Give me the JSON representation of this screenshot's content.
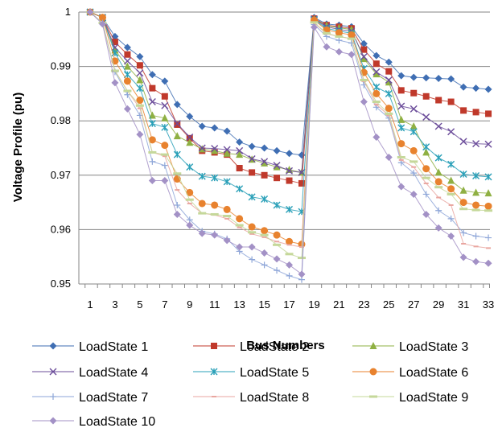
{
  "chart_data": {
    "type": "line",
    "xlabel": "Bus Numbers",
    "ylabel": "Voltage Profile (pu)",
    "ylim": [
      0.95,
      1.0
    ],
    "yticks": [
      "0.95",
      "0.96",
      "0.97",
      "0.98",
      "0.99",
      "1"
    ],
    "xticks": [
      "1",
      "3",
      "5",
      "7",
      "9",
      "11",
      "13",
      "15",
      "17",
      "19",
      "21",
      "23",
      "25",
      "27",
      "29",
      "31",
      "33"
    ],
    "x": [
      1,
      2,
      3,
      4,
      5,
      6,
      7,
      8,
      9,
      10,
      11,
      12,
      13,
      14,
      15,
      16,
      17,
      18,
      19,
      20,
      21,
      22,
      23,
      24,
      25,
      26,
      27,
      28,
      29,
      30,
      31,
      32,
      33
    ],
    "grid": "horizontal",
    "legend_position": "bottom",
    "series": [
      {
        "name": "LoadState 1",
        "color": "#3f6eb3",
        "marker": "diamond",
        "values": [
          1.0,
          0.999,
          0.9955,
          0.9935,
          0.9918,
          0.9885,
          0.9873,
          0.983,
          0.9808,
          0.979,
          0.9787,
          0.9781,
          0.9761,
          0.9753,
          0.975,
          0.9745,
          0.974,
          0.9737,
          0.999,
          0.9978,
          0.9976,
          0.9973,
          0.9942,
          0.992,
          0.9908,
          0.9883,
          0.988,
          0.9879,
          0.9878,
          0.9877,
          0.9862,
          0.986,
          0.9858
        ]
      },
      {
        "name": "LoadState 2",
        "color": "#c0392b",
        "marker": "square",
        "values": [
          1.0,
          0.999,
          0.9945,
          0.9922,
          0.9902,
          0.986,
          0.9845,
          0.9793,
          0.9768,
          0.9745,
          0.9742,
          0.9738,
          0.9713,
          0.9705,
          0.97,
          0.9695,
          0.969,
          0.9685,
          0.9988,
          0.9976,
          0.9973,
          0.997,
          0.9931,
          0.9905,
          0.9891,
          0.9856,
          0.9851,
          0.9845,
          0.9838,
          0.9835,
          0.9819,
          0.9816,
          0.9813
        ]
      },
      {
        "name": "LoadState 3",
        "color": "#8fb043",
        "marker": "triangle",
        "values": [
          1.0,
          0.999,
          0.993,
          0.99,
          0.9875,
          0.981,
          0.9805,
          0.9772,
          0.976,
          0.9748,
          0.9745,
          0.974,
          0.9738,
          0.9729,
          0.9722,
          0.9715,
          0.971,
          0.9705,
          0.9987,
          0.9975,
          0.9971,
          0.9968,
          0.9914,
          0.9886,
          0.9871,
          0.9802,
          0.979,
          0.9742,
          0.9705,
          0.969,
          0.9672,
          0.9668,
          0.9667
        ]
      },
      {
        "name": "LoadState 4",
        "color": "#6b4c9a",
        "marker": "x",
        "values": [
          1.0,
          0.999,
          0.9935,
          0.991,
          0.9888,
          0.9835,
          0.9828,
          0.9795,
          0.977,
          0.975,
          0.9749,
          0.9747,
          0.9745,
          0.973,
          0.9725,
          0.9718,
          0.9708,
          0.9705,
          0.9987,
          0.9973,
          0.9968,
          0.9965,
          0.9918,
          0.989,
          0.9875,
          0.9827,
          0.9822,
          0.9807,
          0.979,
          0.978,
          0.9762,
          0.9758,
          0.9757
        ]
      },
      {
        "name": "LoadState 5",
        "color": "#2aa0b8",
        "marker": "star",
        "values": [
          1.0,
          0.999,
          0.9925,
          0.9885,
          0.986,
          0.9795,
          0.9788,
          0.9738,
          0.9715,
          0.9698,
          0.9695,
          0.9688,
          0.9675,
          0.966,
          0.9656,
          0.9645,
          0.9637,
          0.9633,
          0.9986,
          0.997,
          0.9965,
          0.9961,
          0.9896,
          0.9862,
          0.985,
          0.9787,
          0.978,
          0.9752,
          0.9732,
          0.972,
          0.9702,
          0.9699,
          0.9697
        ]
      },
      {
        "name": "LoadState 6",
        "color": "#e8822e",
        "marker": "circle",
        "values": [
          1.0,
          0.999,
          0.991,
          0.9873,
          0.9838,
          0.9765,
          0.9755,
          0.9693,
          0.9668,
          0.9648,
          0.9645,
          0.9637,
          0.962,
          0.9605,
          0.9598,
          0.959,
          0.9578,
          0.9573,
          0.9985,
          0.9967,
          0.9962,
          0.9958,
          0.9889,
          0.985,
          0.9823,
          0.9758,
          0.9745,
          0.9712,
          0.9688,
          0.9675,
          0.965,
          0.9645,
          0.9643
        ]
      },
      {
        "name": "LoadState 7",
        "color": "#8ea6d8",
        "marker": "plus",
        "values": [
          1.0,
          0.998,
          0.989,
          0.9848,
          0.981,
          0.9725,
          0.9718,
          0.9645,
          0.9618,
          0.9597,
          0.9592,
          0.9583,
          0.956,
          0.9545,
          0.9535,
          0.9525,
          0.9515,
          0.9508,
          0.9977,
          0.9955,
          0.9948,
          0.9943,
          0.9866,
          0.9825,
          0.9805,
          0.9723,
          0.9704,
          0.9665,
          0.9635,
          0.962,
          0.9594,
          0.9588,
          0.9585
        ]
      },
      {
        "name": "LoadState 8",
        "color": "#e9a6a0",
        "marker": "dash",
        "values": [
          1.0,
          0.998,
          0.9892,
          0.9855,
          0.9823,
          0.9742,
          0.9735,
          0.9673,
          0.9648,
          0.963,
          0.9627,
          0.962,
          0.9604,
          0.9592,
          0.9586,
          0.9578,
          0.9572,
          0.9568,
          0.998,
          0.996,
          0.9955,
          0.9951,
          0.9873,
          0.983,
          0.981,
          0.9728,
          0.9715,
          0.9685,
          0.9659,
          0.9645,
          0.9574,
          0.9569,
          0.9566
        ]
      },
      {
        "name": "LoadState 9",
        "color": "#c5d89a",
        "marker": "bar",
        "values": [
          1.0,
          0.998,
          0.9892,
          0.9855,
          0.9828,
          0.9742,
          0.9738,
          0.9703,
          0.9655,
          0.963,
          0.9628,
          0.9625,
          0.9608,
          0.9595,
          0.959,
          0.9572,
          0.9555,
          0.9548,
          0.9981,
          0.9961,
          0.9955,
          0.9951,
          0.9875,
          0.9835,
          0.9813,
          0.9733,
          0.9725,
          0.9695,
          0.9678,
          0.9665,
          0.9638,
          0.9636,
          0.9635
        ]
      },
      {
        "name": "LoadState 10",
        "color": "#a391c6",
        "marker": "diamond",
        "values": [
          1.0,
          0.9978,
          0.987,
          0.9822,
          0.9775,
          0.969,
          0.969,
          0.9628,
          0.9608,
          0.9593,
          0.959,
          0.958,
          0.9568,
          0.9568,
          0.9557,
          0.9546,
          0.9535,
          0.9518,
          0.9972,
          0.9936,
          0.9927,
          0.9922,
          0.9835,
          0.977,
          0.9733,
          0.9679,
          0.9665,
          0.9628,
          0.9603,
          0.9588,
          0.9549,
          0.9541,
          0.9538
        ]
      }
    ]
  }
}
